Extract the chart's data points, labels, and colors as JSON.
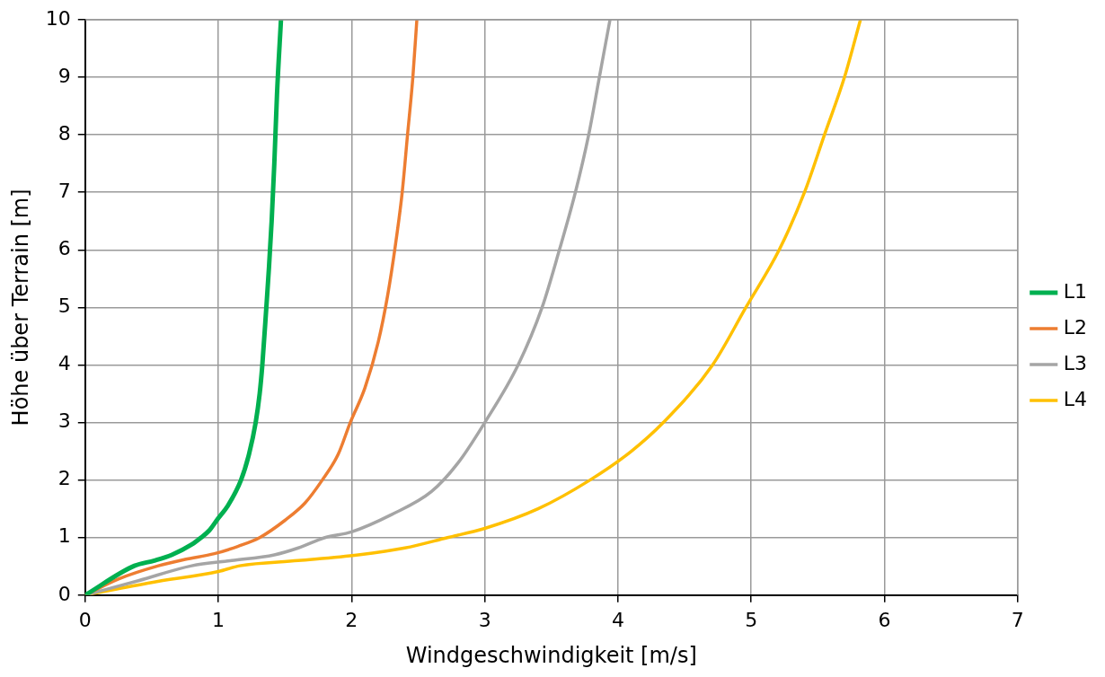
{
  "chart_data": {
    "type": "line",
    "xlabel": "Windgeschwindigkeit [m/s]",
    "ylabel": "Höhe über Terrain [m]",
    "xlim": [
      0,
      7
    ],
    "xticks": [
      0,
      1,
      2,
      3,
      4,
      5,
      6,
      7
    ],
    "ylim": [
      0,
      10
    ],
    "yticks": [
      0,
      1,
      2,
      3,
      4,
      5,
      6,
      7,
      8,
      9,
      10
    ],
    "grid": true,
    "legend": "right",
    "marker": "none",
    "line_style": "solid",
    "series": [
      {
        "name": "L1",
        "color": "#00b050",
        "x": [
          0,
          0.37,
          0.52,
          0.65,
          0.8,
          0.87,
          0.93,
          1.0,
          1.07,
          1.17,
          1.23,
          1.28,
          1.31,
          1.33,
          1.36,
          1.38,
          1.4,
          1.42,
          1.44,
          1.47
        ],
        "values": [
          0,
          0.51,
          0.6,
          0.7,
          0.88,
          1.0,
          1.12,
          1.34,
          1.55,
          2.0,
          2.45,
          3.0,
          3.5,
          4.0,
          5.0,
          5.7,
          6.5,
          7.5,
          8.7,
          10
        ]
      },
      {
        "name": "L2",
        "color": "#ed7d31",
        "x": [
          0,
          0.25,
          0.55,
          0.75,
          0.97,
          1.15,
          1.31,
          1.5,
          1.65,
          1.78,
          1.9,
          1.99,
          2.1,
          2.2,
          2.27,
          2.33,
          2.38,
          2.42,
          2.46,
          2.49
        ],
        "values": [
          0,
          0.28,
          0.51,
          0.62,
          0.72,
          0.85,
          1.0,
          1.3,
          1.6,
          2.0,
          2.45,
          3.0,
          3.6,
          4.4,
          5.2,
          6.1,
          7.0,
          8.0,
          9.0,
          10
        ]
      },
      {
        "name": "L3",
        "color": "#a5a5a5",
        "x": [
          0,
          0.4,
          0.8,
          1.1,
          1.42,
          1.6,
          1.8,
          2.0,
          2.3,
          2.6,
          2.8,
          3.0,
          3.25,
          3.43,
          3.56,
          3.68,
          3.78,
          3.86,
          3.94
        ],
        "values": [
          0,
          0.25,
          0.51,
          0.6,
          0.7,
          0.82,
          1.0,
          1.1,
          1.4,
          1.8,
          2.3,
          3.0,
          4.0,
          5.0,
          6.0,
          7.0,
          8.0,
          9.0,
          10
        ]
      },
      {
        "name": "L4",
        "color": "#ffc000",
        "x": [
          0,
          0.5,
          1.0,
          1.16,
          1.6,
          2.05,
          2.4,
          2.72,
          3.0,
          3.4,
          3.79,
          4.1,
          4.34,
          4.71,
          4.96,
          5.21,
          5.4,
          5.55,
          5.7,
          5.82
        ],
        "values": [
          0,
          0.22,
          0.41,
          0.51,
          0.6,
          0.7,
          0.82,
          1.0,
          1.16,
          1.5,
          2.0,
          2.5,
          3.0,
          4.0,
          5.0,
          6.0,
          7.0,
          8.0,
          9.0,
          10
        ]
      }
    ]
  }
}
